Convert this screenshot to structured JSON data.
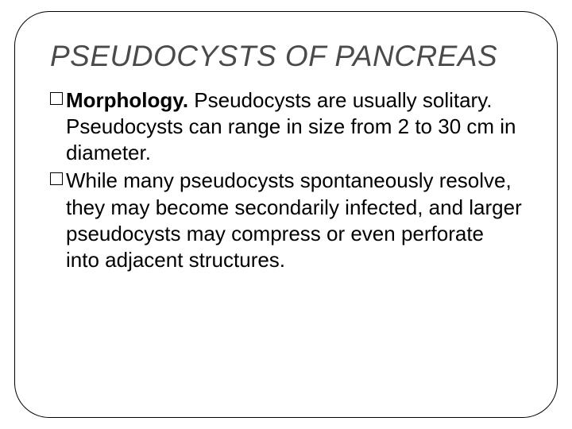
{
  "slide": {
    "title": "PSEUDOCYSTS OF PANCREAS",
    "title_color": "#4a4a4a",
    "title_fontsize": 37,
    "body_fontsize": 26,
    "body_color": "#000000",
    "bullets": [
      {
        "bold_lead": "Morphology.",
        "rest": " Pseudocysts are usually solitary. Pseudocysts can range in size from 2 to 30 cm in diameter."
      },
      {
        "bold_lead": "",
        "rest": "While many pseudocysts spontaneously resolve, they may become secondarily infected, and larger pseudocysts may compress or even perforate into adjacent structures."
      }
    ],
    "frame_border_color": "#000000",
    "frame_border_radius": 44,
    "background_color": "#ffffff"
  }
}
